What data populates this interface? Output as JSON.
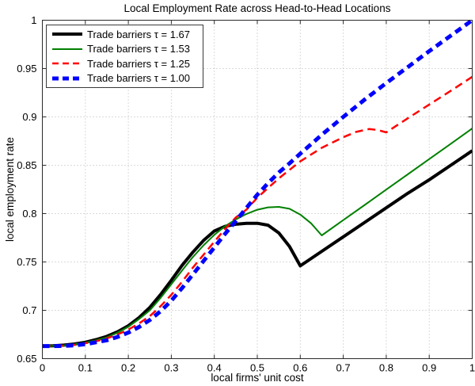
{
  "chart_data": {
    "type": "line",
    "title": "Local Employment Rate across Head-to-Head Locations",
    "xlabel": "local firms' unit cost",
    "ylabel": "local employment rate",
    "xlim": [
      0,
      1
    ],
    "ylim": [
      0.65,
      1
    ],
    "xticks": [
      0,
      0.1,
      0.2,
      0.3,
      0.4,
      0.5,
      0.6,
      0.7,
      0.8,
      0.9,
      1
    ],
    "xtick_labels": [
      "0",
      "0.1",
      "0.2",
      "0.3",
      "0.4",
      "0.5",
      "0.6",
      "0.7",
      "0.8",
      "0.9",
      "1"
    ],
    "yticks": [
      0.65,
      0.7,
      0.75,
      0.8,
      0.85,
      0.9,
      0.95,
      1
    ],
    "ytick_labels": [
      "0.65",
      "0.7",
      "0.75",
      "0.8",
      "0.85",
      "0.9",
      "0.95",
      "1"
    ],
    "grid": true,
    "grid_color": "#b5b5b5",
    "axis_color": "#2b2b2b",
    "legend_position": "top-left",
    "series": [
      {
        "name": "Trade barriers τ = 1.67",
        "color": "#000000",
        "line_width": 4,
        "line_style": "solid",
        "dash": "",
        "x": [
          0,
          0.025,
          0.05,
          0.075,
          0.1,
          0.125,
          0.15,
          0.175,
          0.2,
          0.225,
          0.25,
          0.275,
          0.3,
          0.325,
          0.35,
          0.375,
          0.4,
          0.425,
          0.45,
          0.475,
          0.5,
          0.525,
          0.55,
          0.575,
          0.6,
          0.65,
          0.7,
          0.75,
          0.8,
          0.85,
          0.9,
          0.95,
          1
        ],
        "y": [
          0.663,
          0.6633,
          0.664,
          0.6652,
          0.667,
          0.6697,
          0.673,
          0.6778,
          0.684,
          0.6925,
          0.703,
          0.7162,
          0.731,
          0.7465,
          0.76,
          0.7722,
          0.782,
          0.7868,
          0.789,
          0.79,
          0.79,
          0.788,
          0.78,
          0.766,
          0.746,
          0.761,
          0.776,
          0.791,
          0.806,
          0.821,
          0.835,
          0.85,
          0.865
        ]
      },
      {
        "name": "Trade barriers τ = 1.53",
        "color": "#008000",
        "line_width": 2,
        "line_style": "solid",
        "dash": "",
        "x": [
          0,
          0.025,
          0.05,
          0.075,
          0.1,
          0.125,
          0.15,
          0.175,
          0.2,
          0.225,
          0.25,
          0.275,
          0.3,
          0.325,
          0.35,
          0.375,
          0.4,
          0.425,
          0.45,
          0.475,
          0.5,
          0.525,
          0.55,
          0.575,
          0.6,
          0.625,
          0.65,
          0.7,
          0.75,
          0.8,
          0.85,
          0.9,
          0.95,
          1
        ],
        "y": [
          0.663,
          0.6632,
          0.6638,
          0.6648,
          0.6665,
          0.669,
          0.672,
          0.677,
          0.683,
          0.691,
          0.7,
          0.7128,
          0.727,
          0.7412,
          0.755,
          0.7672,
          0.778,
          0.787,
          0.794,
          0.7997,
          0.804,
          0.8065,
          0.807,
          0.805,
          0.799,
          0.79,
          0.7775,
          0.7933,
          0.809,
          0.8248,
          0.8406,
          0.8564,
          0.8722,
          0.888
        ]
      },
      {
        "name": "Trade barriers τ = 1.25",
        "color": "#ff0000",
        "line_width": 2.5,
        "line_style": "dashed",
        "dash": "10 6",
        "x": [
          0,
          0.025,
          0.05,
          0.075,
          0.1,
          0.125,
          0.15,
          0.175,
          0.2,
          0.225,
          0.25,
          0.275,
          0.3,
          0.325,
          0.35,
          0.375,
          0.4,
          0.425,
          0.45,
          0.475,
          0.5,
          0.55,
          0.6,
          0.65,
          0.7,
          0.73,
          0.76,
          0.78,
          0.8,
          0.85,
          0.9,
          0.95,
          1
        ],
        "y": [
          0.663,
          0.6631,
          0.6635,
          0.6643,
          0.666,
          0.668,
          0.671,
          0.675,
          0.68,
          0.6865,
          0.694,
          0.7042,
          0.716,
          0.7295,
          0.744,
          0.7575,
          0.771,
          0.784,
          0.796,
          0.8042,
          0.8165,
          0.8365,
          0.854,
          0.868,
          0.879,
          0.8845,
          0.8875,
          0.8865,
          0.884,
          0.8985,
          0.9128,
          0.927,
          0.9415
        ]
      },
      {
        "name": "Trade barriers τ = 1.00",
        "color": "#0000ff",
        "line_width": 5,
        "line_style": "dashed",
        "dash": "9 6",
        "x": [
          0,
          0.025,
          0.05,
          0.075,
          0.1,
          0.125,
          0.15,
          0.175,
          0.2,
          0.225,
          0.25,
          0.275,
          0.3,
          0.325,
          0.35,
          0.375,
          0.4,
          0.425,
          0.45,
          0.475,
          0.5,
          0.525,
          0.55,
          0.575,
          0.6,
          0.65,
          0.7,
          0.75,
          0.8,
          0.85,
          0.9,
          0.95,
          1
        ],
        "y": [
          0.663,
          0.663,
          0.6632,
          0.6638,
          0.665,
          0.667,
          0.669,
          0.6725,
          0.677,
          0.6828,
          0.69,
          0.699,
          0.71,
          0.723,
          0.737,
          0.751,
          0.765,
          0.779,
          0.7925,
          0.806,
          0.8195,
          0.8315,
          0.8425,
          0.852,
          0.862,
          0.8815,
          0.9,
          0.918,
          0.935,
          0.9515,
          0.968,
          0.984,
          1.0
        ]
      }
    ]
  }
}
